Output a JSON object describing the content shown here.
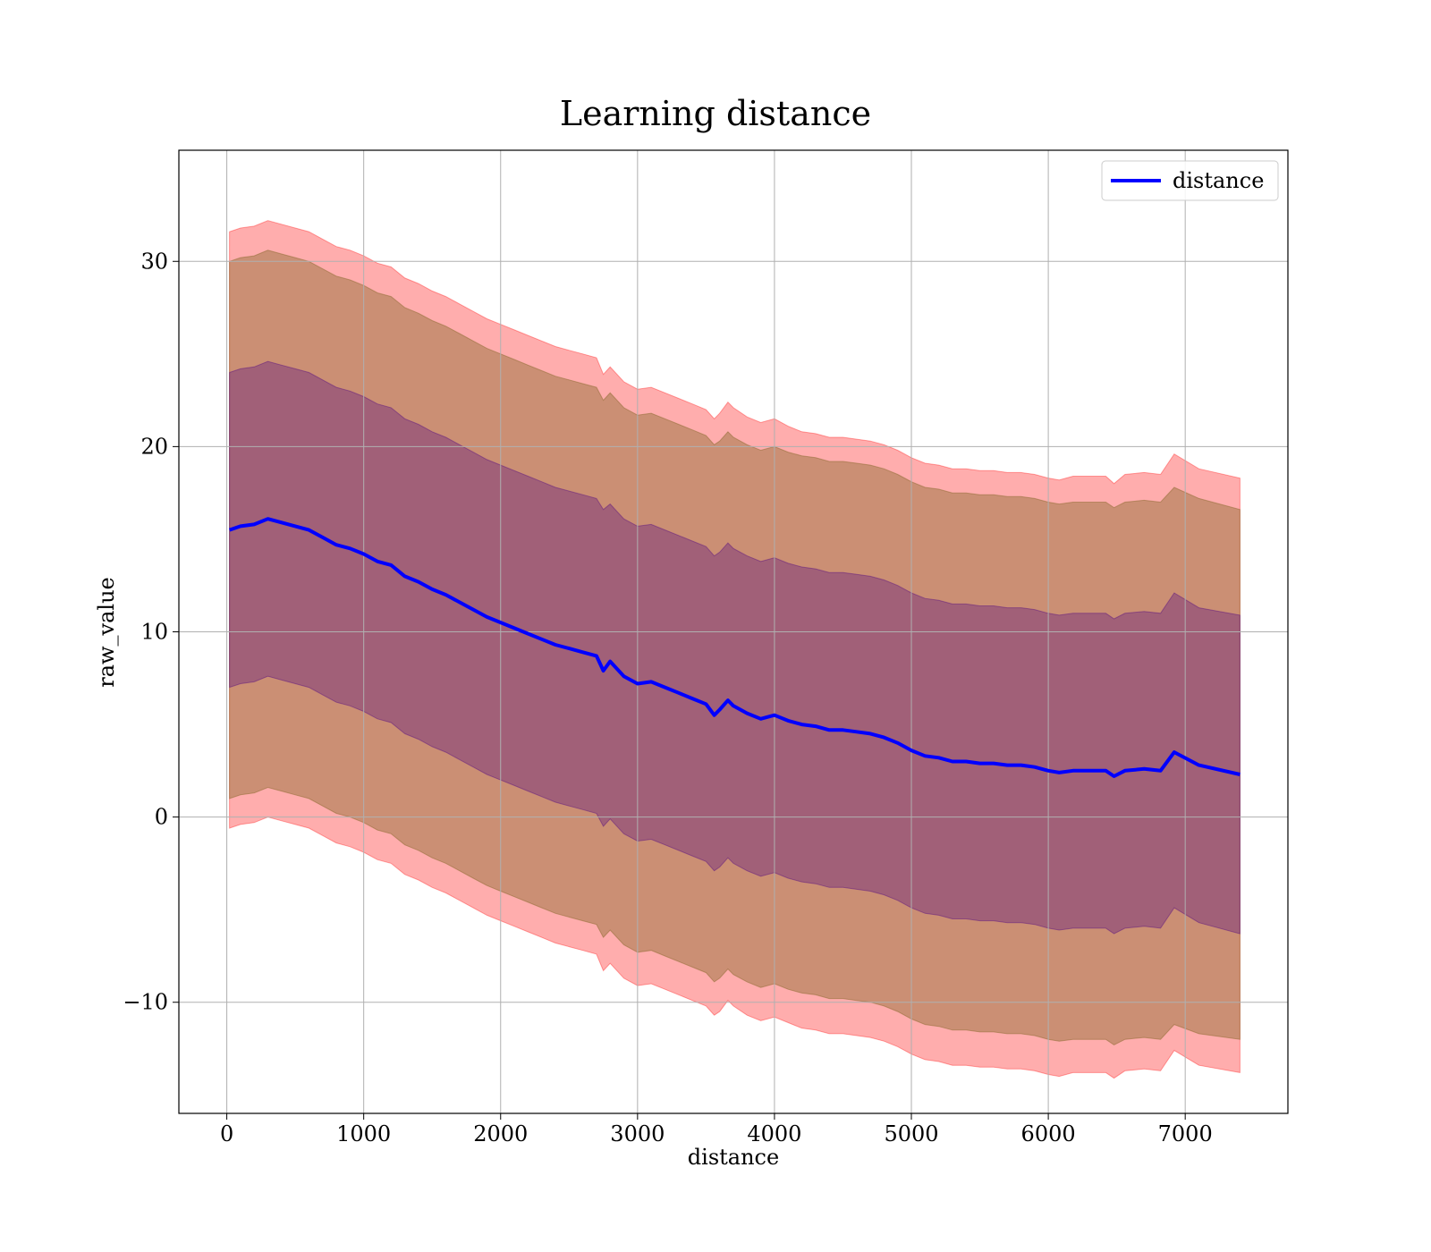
{
  "chart_data": {
    "type": "line",
    "title": "Learning distance",
    "xlabel": "distance",
    "ylabel": "raw_value",
    "xlim": [
      -350,
      7750
    ],
    "ylim": [
      -16,
      36
    ],
    "xticks": [
      0,
      1000,
      2000,
      3000,
      4000,
      5000,
      6000,
      7000
    ],
    "xtick_labels": [
      "0",
      "1000",
      "2000",
      "3000",
      "4000",
      "5000",
      "6000",
      "7000"
    ],
    "yticks": [
      -10,
      0,
      10,
      20,
      30
    ],
    "ytick_labels": [
      "−10",
      "0",
      "10",
      "20",
      "30"
    ],
    "grid": true,
    "legend": {
      "position": "top-right",
      "entries": [
        "distance"
      ]
    },
    "colors": {
      "line": "#0000ff",
      "band": "#ff0000",
      "inner_band": "#4b0082",
      "grid": "#b0b0b0"
    },
    "x": [
      20,
      100,
      200,
      300,
      400,
      500,
      600,
      700,
      800,
      900,
      1000,
      1100,
      1200,
      1300,
      1400,
      1500,
      1600,
      1700,
      1800,
      1900,
      2000,
      2100,
      2200,
      2300,
      2400,
      2500,
      2600,
      2700,
      2750,
      2800,
      2900,
      3000,
      3100,
      3200,
      3300,
      3400,
      3500,
      3560,
      3600,
      3660,
      3700,
      3800,
      3900,
      4000,
      4100,
      4200,
      4300,
      4400,
      4500,
      4600,
      4700,
      4800,
      4900,
      5000,
      5100,
      5200,
      5300,
      5400,
      5500,
      5600,
      5700,
      5800,
      5900,
      6000,
      6080,
      6180,
      6300,
      6420,
      6480,
      6560,
      6700,
      6820,
      6920,
      7100,
      7400
    ],
    "series": [
      {
        "name": "distance",
        "values": [
          15.5,
          15.7,
          15.8,
          16.1,
          15.9,
          15.7,
          15.5,
          15.1,
          14.7,
          14.5,
          14.2,
          13.8,
          13.6,
          13.0,
          12.7,
          12.3,
          12.0,
          11.6,
          11.2,
          10.8,
          10.5,
          10.2,
          9.9,
          9.6,
          9.3,
          9.1,
          8.9,
          8.7,
          7.9,
          8.4,
          7.6,
          7.2,
          7.3,
          7.0,
          6.7,
          6.4,
          6.1,
          5.5,
          5.8,
          6.3,
          6.0,
          5.6,
          5.3,
          5.5,
          5.2,
          5.0,
          4.9,
          4.7,
          4.7,
          4.6,
          4.5,
          4.3,
          4.0,
          3.6,
          3.3,
          3.2,
          3.0,
          3.0,
          2.9,
          2.9,
          2.8,
          2.8,
          2.7,
          2.5,
          2.4,
          2.5,
          2.5,
          2.5,
          2.2,
          2.5,
          2.6,
          2.5,
          3.5,
          2.8,
          2.3
        ]
      },
      {
        "name": "",
        "values_upper_1sd": [
          24.0,
          24.2,
          24.3,
          24.6,
          24.4,
          24.2,
          24.0,
          23.6,
          23.2,
          23.0,
          22.7,
          22.3,
          22.1,
          21.5,
          21.2,
          20.8,
          20.5,
          20.1,
          19.7,
          19.3,
          19.0,
          18.7,
          18.4,
          18.1,
          17.8,
          17.6,
          17.4,
          17.2,
          16.6,
          16.9,
          16.1,
          15.7,
          15.8,
          15.5,
          15.2,
          14.9,
          14.6,
          14.1,
          14.3,
          14.8,
          14.5,
          14.1,
          13.8,
          14.0,
          13.7,
          13.5,
          13.4,
          13.2,
          13.2,
          13.1,
          13.0,
          12.8,
          12.5,
          12.1,
          11.8,
          11.7,
          11.5,
          11.5,
          11.4,
          11.4,
          11.3,
          11.3,
          11.2,
          11.0,
          10.9,
          11.0,
          11.0,
          11.0,
          10.7,
          11.0,
          11.1,
          11.0,
          12.1,
          11.3,
          10.9
        ]
      },
      {
        "name": "",
        "values_upper_2sd": [
          30.0,
          30.2,
          30.3,
          30.6,
          30.4,
          30.2,
          30.0,
          29.6,
          29.2,
          29.0,
          28.7,
          28.3,
          28.1,
          27.5,
          27.2,
          26.8,
          26.5,
          26.1,
          25.7,
          25.3,
          25.0,
          24.7,
          24.4,
          24.1,
          23.8,
          23.6,
          23.4,
          23.2,
          22.5,
          22.9,
          22.1,
          21.7,
          21.8,
          21.5,
          21.2,
          20.9,
          20.6,
          20.1,
          20.3,
          20.8,
          20.5,
          20.1,
          19.8,
          20.0,
          19.7,
          19.5,
          19.4,
          19.2,
          19.2,
          19.1,
          19.0,
          18.8,
          18.5,
          18.1,
          17.8,
          17.7,
          17.5,
          17.5,
          17.4,
          17.4,
          17.3,
          17.3,
          17.2,
          17.0,
          16.9,
          17.0,
          17.0,
          17.0,
          16.7,
          17.0,
          17.1,
          17.0,
          17.8,
          17.2,
          16.6
        ]
      },
      {
        "name": "",
        "values_upper_outer": [
          31.6,
          31.8,
          31.9,
          32.2,
          32.0,
          31.8,
          31.6,
          31.2,
          30.8,
          30.6,
          30.3,
          29.9,
          29.7,
          29.1,
          28.8,
          28.4,
          28.1,
          27.7,
          27.3,
          26.9,
          26.6,
          26.3,
          26.0,
          25.7,
          25.4,
          25.2,
          25.0,
          24.8,
          23.9,
          24.3,
          23.5,
          23.1,
          23.2,
          22.9,
          22.6,
          22.3,
          22.0,
          21.5,
          21.8,
          22.4,
          22.1,
          21.6,
          21.3,
          21.5,
          21.1,
          20.8,
          20.7,
          20.5,
          20.5,
          20.4,
          20.3,
          20.1,
          19.8,
          19.4,
          19.1,
          19.0,
          18.8,
          18.8,
          18.7,
          18.7,
          18.6,
          18.6,
          18.5,
          18.3,
          18.2,
          18.4,
          18.4,
          18.4,
          18.0,
          18.5,
          18.6,
          18.5,
          19.6,
          18.8,
          18.3
        ]
      },
      {
        "name": "",
        "values_lower_1sd": [
          7.0,
          7.2,
          7.3,
          7.6,
          7.4,
          7.2,
          7.0,
          6.6,
          6.2,
          6.0,
          5.7,
          5.3,
          5.1,
          4.5,
          4.2,
          3.8,
          3.5,
          3.1,
          2.7,
          2.3,
          2.0,
          1.7,
          1.4,
          1.1,
          0.8,
          0.6,
          0.4,
          0.2,
          -0.5,
          -0.1,
          -0.9,
          -1.3,
          -1.2,
          -1.5,
          -1.8,
          -2.1,
          -2.4,
          -2.9,
          -2.7,
          -2.2,
          -2.5,
          -2.9,
          -3.2,
          -3.0,
          -3.3,
          -3.5,
          -3.6,
          -3.8,
          -3.8,
          -3.9,
          -4.0,
          -4.2,
          -4.5,
          -4.9,
          -5.2,
          -5.3,
          -5.5,
          -5.5,
          -5.6,
          -5.6,
          -5.7,
          -5.7,
          -5.8,
          -6.0,
          -6.1,
          -6.0,
          -6.0,
          -6.0,
          -6.3,
          -6.0,
          -5.9,
          -6.0,
          -4.9,
          -5.7,
          -6.3
        ]
      },
      {
        "name": "",
        "values_lower_2sd": [
          1.0,
          1.2,
          1.3,
          1.6,
          1.4,
          1.2,
          1.0,
          0.6,
          0.2,
          0.0,
          -0.3,
          -0.7,
          -0.9,
          -1.5,
          -1.8,
          -2.2,
          -2.5,
          -2.9,
          -3.3,
          -3.7,
          -4.0,
          -4.3,
          -4.6,
          -4.9,
          -5.2,
          -5.4,
          -5.6,
          -5.8,
          -6.5,
          -6.1,
          -6.9,
          -7.3,
          -7.2,
          -7.5,
          -7.8,
          -8.1,
          -8.4,
          -8.9,
          -8.7,
          -8.2,
          -8.5,
          -8.9,
          -9.2,
          -9.0,
          -9.3,
          -9.5,
          -9.6,
          -9.8,
          -9.8,
          -9.9,
          -10.0,
          -10.2,
          -10.5,
          -10.9,
          -11.2,
          -11.3,
          -11.5,
          -11.5,
          -11.6,
          -11.6,
          -11.7,
          -11.7,
          -11.8,
          -12.0,
          -12.1,
          -12.0,
          -12.0,
          -12.0,
          -12.3,
          -12.0,
          -11.9,
          -12.0,
          -11.2,
          -11.7,
          -12.0
        ]
      },
      {
        "name": "",
        "values_lower_outer": [
          -0.6,
          -0.4,
          -0.3,
          0.0,
          -0.2,
          -0.4,
          -0.6,
          -1.0,
          -1.4,
          -1.6,
          -1.9,
          -2.3,
          -2.5,
          -3.1,
          -3.4,
          -3.8,
          -4.1,
          -4.5,
          -4.9,
          -5.3,
          -5.6,
          -5.9,
          -6.2,
          -6.5,
          -6.8,
          -7.0,
          -7.2,
          -7.4,
          -8.3,
          -7.9,
          -8.7,
          -9.1,
          -9.0,
          -9.3,
          -9.6,
          -9.9,
          -10.2,
          -10.7,
          -10.5,
          -9.9,
          -10.2,
          -10.7,
          -11.0,
          -10.8,
          -11.1,
          -11.4,
          -11.5,
          -11.7,
          -11.7,
          -11.8,
          -11.9,
          -12.1,
          -12.4,
          -12.8,
          -13.1,
          -13.2,
          -13.4,
          -13.4,
          -13.5,
          -13.5,
          -13.6,
          -13.6,
          -13.7,
          -13.9,
          -14.0,
          -13.8,
          -13.8,
          -13.8,
          -14.1,
          -13.7,
          -13.6,
          -13.7,
          -12.6,
          -13.4,
          -13.8
        ]
      }
    ]
  }
}
